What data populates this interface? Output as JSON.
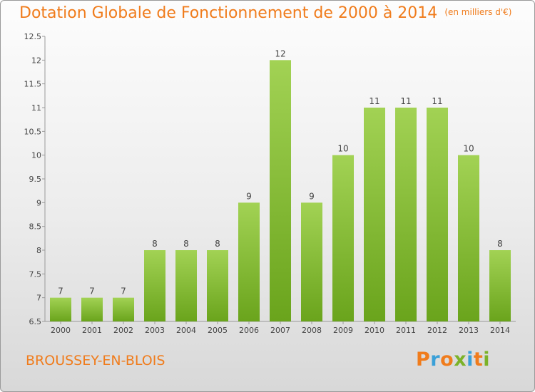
{
  "title": "Dotation Globale de Fonctionnement de 2000 à 2014",
  "unit": "(en milliers d'€)",
  "commune": "BROUSSEY-EN-BLOIS",
  "logo": {
    "letters": [
      "P",
      "r",
      "o",
      "x",
      "i",
      "t",
      "i"
    ],
    "colors": [
      "#f07c1c",
      "#3aa0d8",
      "#f07c1c",
      "#7bb228",
      "#3aa0d8",
      "#f07c1c",
      "#7bb228"
    ]
  },
  "colors": {
    "accent": "#f07c1c",
    "bar_top": "#a2d254",
    "bar_bottom": "#6aa41c"
  },
  "chart_data": {
    "type": "bar",
    "categories": [
      "2000",
      "2001",
      "2002",
      "2003",
      "2004",
      "2005",
      "2006",
      "2007",
      "2008",
      "2009",
      "2010",
      "2011",
      "2012",
      "2013",
      "2014"
    ],
    "values": [
      7,
      7,
      7,
      8,
      8,
      8,
      9,
      12,
      9,
      10,
      11,
      11,
      11,
      10,
      8
    ],
    "data_labels": [
      "7",
      "7",
      "7",
      "8",
      "8",
      "8",
      "9",
      "12",
      "9",
      "10",
      "11",
      "11",
      "11",
      "10",
      "8"
    ],
    "ylim": [
      6.5,
      12.5
    ],
    "yticks": [
      6.5,
      7,
      7.5,
      8,
      8.5,
      9,
      9.5,
      10,
      10.5,
      11,
      11.5,
      12,
      12.5
    ],
    "ytick_labels": [
      "6.5",
      "7",
      "7.5",
      "8",
      "8.5",
      "9",
      "9.5",
      "10",
      "10.5",
      "11",
      "11.5",
      "12",
      "12.5"
    ],
    "grid": false,
    "xlabel": "",
    "ylabel": ""
  }
}
